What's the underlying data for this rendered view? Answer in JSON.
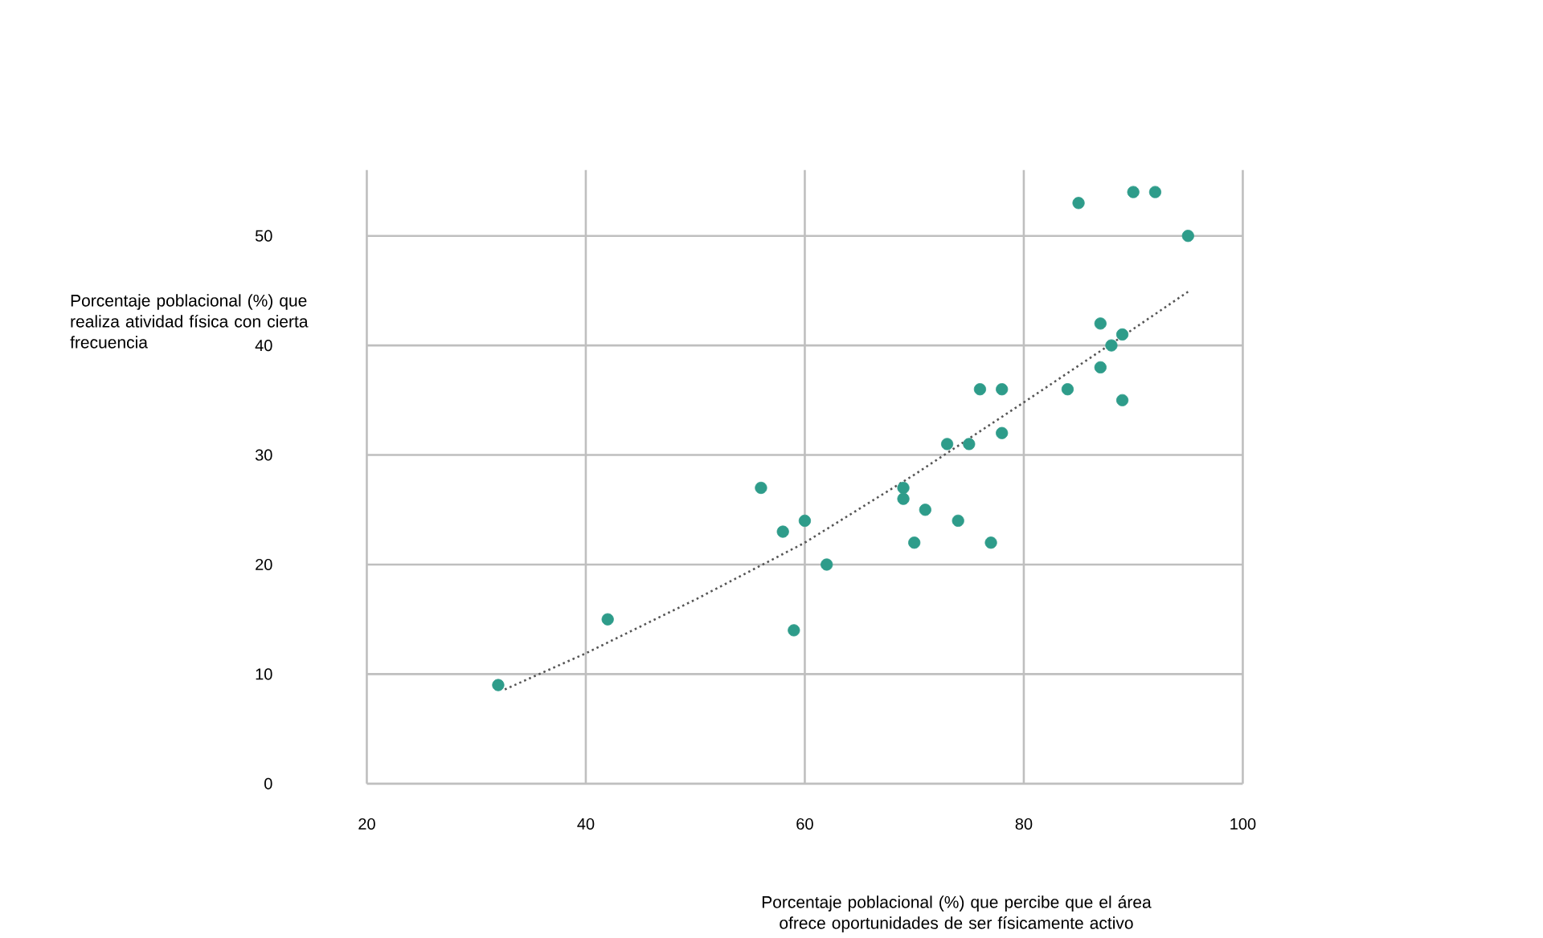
{
  "chart_data": {
    "type": "scatter",
    "xlabel": "Porcentaje poblacional (%) que percibe que el área ofrece oportunidades de ser físicamente activo",
    "ylabel": "Porcentaje poblacional (%) que realiza atividad física con cierta frecuencia",
    "xlim": [
      20,
      100
    ],
    "ylim": [
      0,
      56
    ],
    "xticks": [
      20,
      40,
      60,
      80,
      100
    ],
    "yticks": [
      0,
      10,
      20,
      30,
      40,
      50
    ],
    "grid": true,
    "series": [
      {
        "type": "scatter",
        "color": "#2e9c8a",
        "marker": "circle",
        "x": [
          32,
          42,
          56,
          58,
          60,
          62,
          59,
          69,
          69,
          71,
          70,
          74,
          77,
          73,
          75,
          76,
          78,
          78,
          84,
          87,
          87,
          88,
          89,
          89,
          85,
          90,
          92,
          95
        ],
        "values": [
          9,
          15,
          27,
          23,
          24,
          20,
          14,
          27,
          26,
          25,
          22,
          24,
          22,
          31,
          31,
          36,
          36,
          32,
          36,
          42,
          38,
          40,
          41,
          35,
          53,
          54,
          54,
          50
        ]
      },
      {
        "type": "line",
        "color": "#555555",
        "line_style": "dotted",
        "x": [
          32.6,
          40,
          50,
          60,
          70,
          80,
          90,
          95
        ],
        "values": [
          8.6,
          11.9,
          16.8,
          22,
          28.2,
          34.8,
          41.5,
          44.9
        ]
      }
    ]
  }
}
